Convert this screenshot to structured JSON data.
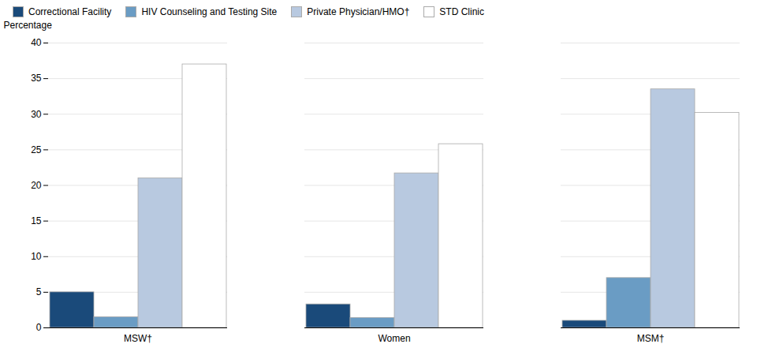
{
  "chart_data": {
    "type": "bar",
    "categories": [
      "MSW†",
      "Women",
      "MSM†"
    ],
    "series": [
      {
        "name": "Correctional Facility",
        "color": "#1a4a7a",
        "values": [
          5.0,
          3.3,
          1.0
        ]
      },
      {
        "name": "HIV Counseling and Testing Site",
        "color": "#6a9cc4",
        "values": [
          1.5,
          1.4,
          7.0
        ]
      },
      {
        "name": "Private Physician/HMO†",
        "color": "#b8c9e0",
        "values": [
          21.0,
          21.7,
          33.5
        ]
      },
      {
        "name": "STD Clinic",
        "color": "#ffffff",
        "values": [
          37.0,
          25.8,
          30.2
        ]
      }
    ],
    "ylabel": "Percentage",
    "ylim": [
      0,
      40
    ],
    "yticks": [
      0,
      5,
      10,
      15,
      20,
      25,
      30,
      35,
      40
    ],
    "grid": true,
    "legend": "upper left"
  }
}
